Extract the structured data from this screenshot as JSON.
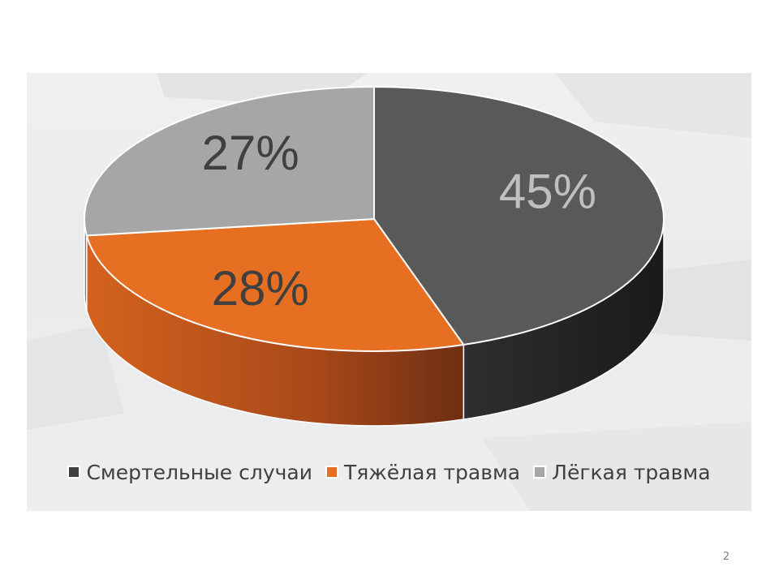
{
  "slide": {
    "page_number": "2"
  },
  "chart_data": {
    "type": "pie",
    "style": "3d",
    "title": "",
    "categories": [
      "Смертельные случаи",
      "Тяжёлая травма",
      "Лёгкая травма"
    ],
    "values": [
      45,
      28,
      27
    ],
    "data_labels": [
      "45%",
      "28%",
      "27%"
    ],
    "unit": "%",
    "colors": [
      "#595959",
      "#e76f22",
      "#a6a6a6"
    ],
    "label_colors": [
      "#bfbfbf",
      "#404040",
      "#404040"
    ],
    "legend": {
      "placement": "bottom",
      "entries": [
        {
          "label": "Смертельные случаи",
          "color": "#404040"
        },
        {
          "label": "Тяжёлая травма",
          "color": "#e76f22"
        },
        {
          "label": "Лёгкая травма",
          "color": "#a6a6a6"
        }
      ]
    }
  }
}
